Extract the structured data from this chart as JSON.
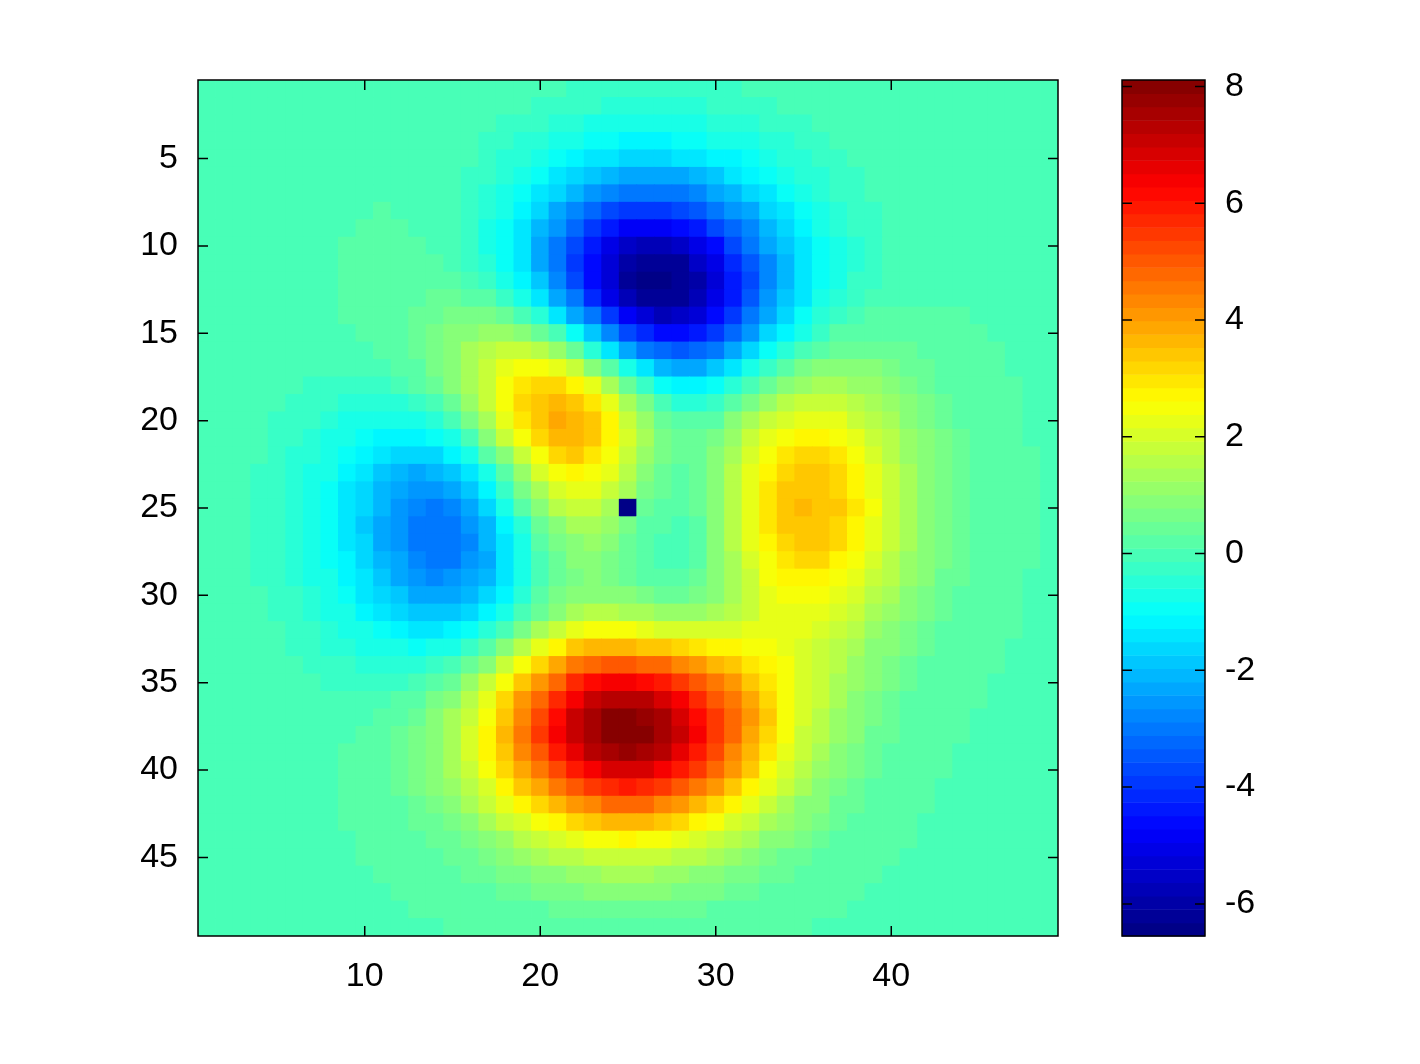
{
  "chart_data": {
    "type": "heatmap",
    "categories": [
      null,
      null,
      null,
      null,
      null,
      null,
      null,
      null,
      null,
      "10",
      null,
      null,
      null,
      null,
      null,
      null,
      null,
      null,
      null,
      "20",
      null,
      null,
      null,
      null,
      null,
      null,
      null,
      null,
      null,
      "30",
      null,
      null,
      null,
      null,
      null,
      null,
      null,
      null,
      null,
      "40",
      null,
      null,
      null,
      null,
      null,
      null,
      null,
      null,
      null
    ],
    "y_categories": [
      null,
      null,
      null,
      null,
      "5",
      null,
      null,
      null,
      null,
      "10",
      null,
      null,
      null,
      null,
      "15",
      null,
      null,
      null,
      null,
      "20",
      null,
      null,
      null,
      null,
      "25",
      null,
      null,
      null,
      null,
      "30",
      null,
      null,
      null,
      null,
      "35",
      null,
      null,
      null,
      null,
      "40",
      null,
      null,
      null,
      null,
      "45",
      null,
      null,
      null,
      null
    ],
    "clim": [
      -6.55,
      8.11
    ],
    "cticks": [
      -6,
      -4,
      -2,
      0,
      2,
      4,
      6,
      8
    ],
    "cells": [
      [
        0,
        0,
        0,
        0,
        0,
        0,
        0,
        0,
        0,
        0,
        0,
        0,
        0,
        0,
        0,
        0,
        0,
        0,
        -0.1,
        -0.1,
        -0.1,
        -0.2,
        -0.2,
        -0.2,
        -0.2,
        -0.3,
        -0.3,
        -0.2,
        -0.2,
        -0.2,
        -0.2,
        -0.1,
        -0.1,
        -0.1,
        -0.1,
        0,
        0,
        0,
        0,
        0,
        0,
        0,
        0,
        0,
        0,
        0,
        0,
        0,
        0
      ],
      [
        0,
        0,
        0,
        0,
        0,
        0,
        0,
        0,
        0,
        0,
        0,
        0,
        0,
        0,
        0,
        0,
        -0.1,
        -0.1,
        -0.1,
        -0.2,
        -0.2,
        -0.3,
        -0.3,
        -0.4,
        -0.4,
        -0.4,
        -0.4,
        -0.4,
        -0.4,
        -0.3,
        -0.3,
        -0.2,
        -0.2,
        -0.1,
        -0.1,
        -0.1,
        -0.1,
        0,
        0,
        0,
        0,
        0,
        0,
        0,
        0,
        0,
        0,
        0,
        0
      ],
      [
        0,
        0,
        0,
        0,
        0,
        0,
        0,
        0,
        0,
        0,
        0,
        0,
        0,
        0,
        0,
        -0.1,
        -0.1,
        -0.2,
        -0.2,
        -0.3,
        -0.4,
        -0.5,
        -0.6,
        -0.6,
        -0.7,
        -0.7,
        -0.7,
        -0.7,
        -0.6,
        -0.5,
        -0.5,
        -0.4,
        -0.3,
        -0.2,
        -0.2,
        -0.1,
        -0.1,
        -0.1,
        0,
        0,
        0,
        0,
        0,
        0,
        0,
        0,
        0,
        0,
        0
      ],
      [
        0,
        0,
        0,
        0,
        0,
        0,
        0,
        0,
        0,
        0,
        0,
        0,
        0,
        0,
        0,
        -0.1,
        -0.2,
        -0.2,
        -0.4,
        -0.5,
        -0.6,
        -0.8,
        -0.9,
        -1.0,
        -1.1,
        -1.1,
        -1.1,
        -1.0,
        -1.0,
        -0.8,
        -0.7,
        -0.6,
        -0.5,
        -0.4,
        -0.3,
        -0.2,
        -0.1,
        -0.1,
        -0.1,
        0,
        0,
        0,
        0,
        0,
        0,
        0,
        0,
        0,
        0
      ],
      [
        0,
        0,
        0,
        0,
        0,
        0,
        0,
        0,
        0,
        0,
        0,
        0,
        0,
        0,
        -0.1,
        -0.1,
        -0.2,
        -0.4,
        -0.5,
        -0.7,
        -0.9,
        -1.1,
        -1.3,
        -1.5,
        -1.6,
        -1.6,
        -1.6,
        -1.5,
        -1.4,
        -1.2,
        -1.1,
        -0.9,
        -0.7,
        -0.5,
        -0.4,
        -0.3,
        -0.2,
        -0.1,
        -0.1,
        0,
        0,
        0,
        0,
        0,
        0,
        0,
        0,
        0,
        0
      ],
      [
        0,
        0,
        0,
        0,
        0,
        0,
        0,
        0,
        0,
        0,
        0,
        0,
        0,
        0,
        -0.1,
        -0.2,
        -0.3,
        -0.5,
        -0.7,
        -1.0,
        -1.3,
        -1.6,
        -1.9,
        -2.1,
        -2.2,
        -2.3,
        -2.3,
        -2.2,
        -2.0,
        -1.8,
        -1.5,
        -1.2,
        -1.0,
        -0.7,
        -0.5,
        -0.4,
        -0.3,
        -0.2,
        -0.1,
        -0.1,
        0,
        0,
        0,
        0,
        0,
        0,
        0,
        0,
        0
      ],
      [
        0,
        0,
        0,
        0,
        0,
        0,
        0,
        0,
        0,
        0,
        0,
        0,
        0,
        0,
        -0.1,
        -0.3,
        -0.4,
        -0.7,
        -1.0,
        -1.4,
        -1.7,
        -2.1,
        -2.5,
        -2.8,
        -3.0,
        -3.1,
        -3.1,
        -3.0,
        -2.7,
        -2.4,
        -2.0,
        -1.7,
        -1.3,
        -1.0,
        -0.7,
        -0.5,
        -0.3,
        -0.2,
        -0.1,
        -0.1,
        0,
        0,
        0,
        0,
        0,
        0,
        0,
        0,
        0
      ],
      [
        0,
        0,
        0,
        0,
        0,
        0,
        0,
        0,
        0,
        0,
        0.1,
        0,
        0,
        0,
        -0.1,
        -0.3,
        -0.5,
        -0.8,
        -1.2,
        -1.7,
        -2.2,
        -2.7,
        -3.2,
        -3.6,
        -3.9,
        -4.0,
        -4.0,
        -3.8,
        -3.5,
        -3.1,
        -2.6,
        -2.2,
        -1.7,
        -1.3,
        -0.9,
        -0.7,
        -0.4,
        -0.3,
        -0.2,
        -0.1,
        -0.1,
        0,
        0,
        0,
        0,
        0,
        0,
        0,
        0
      ],
      [
        0,
        0,
        0,
        0,
        0,
        0,
        0,
        0,
        0,
        0.1,
        0.1,
        0.1,
        0,
        0,
        -0.1,
        -0.3,
        -0.6,
        -1.0,
        -1.4,
        -2.0,
        -2.6,
        -3.3,
        -3.9,
        -4.4,
        -4.8,
        -4.9,
        -4.9,
        -4.7,
        -4.3,
        -3.8,
        -3.3,
        -2.7,
        -2.1,
        -1.6,
        -1.1,
        -0.8,
        -0.5,
        -0.3,
        -0.2,
        -0.1,
        -0.1,
        0,
        0,
        0,
        0,
        0,
        0,
        0,
        0
      ],
      [
        0,
        0,
        0,
        0,
        0,
        0,
        0,
        0,
        0.1,
        0.1,
        0.1,
        0.1,
        0.1,
        0,
        -0.1,
        -0.3,
        -0.6,
        -1.0,
        -1.5,
        -2.2,
        -2.9,
        -3.7,
        -4.4,
        -5.0,
        -5.5,
        -5.7,
        -5.7,
        -5.5,
        -5.1,
        -4.5,
        -3.8,
        -3.1,
        -2.4,
        -1.8,
        -1.3,
        -0.9,
        -0.6,
        -0.4,
        -0.2,
        -0.1,
        -0.1,
        0,
        0,
        0,
        0,
        0,
        0,
        0,
        0
      ],
      [
        0,
        0,
        0,
        0,
        0,
        0,
        0,
        0,
        0.1,
        0.1,
        0.1,
        0.1,
        0.2,
        0.1,
        0,
        -0.2,
        -0.5,
        -0.9,
        -1.5,
        -2.2,
        -3.0,
        -3.9,
        -4.7,
        -5.4,
        -6.0,
        -6.3,
        -6.3,
        -6.1,
        -5.6,
        -5.0,
        -4.2,
        -3.5,
        -2.7,
        -2.0,
        -1.4,
        -1.0,
        -0.6,
        -0.4,
        -0.2,
        -0.1,
        0,
        0,
        0,
        0,
        0,
        0,
        0,
        0,
        0
      ],
      [
        0,
        0,
        0,
        0,
        0,
        0,
        0,
        0,
        0.1,
        0.1,
        0.2,
        0.2,
        0.2,
        0.2,
        0.2,
        0,
        -0.2,
        -0.6,
        -1.2,
        -1.9,
        -2.8,
        -3.7,
        -4.6,
        -5.4,
        -6.1,
        -6.4,
        -6.5,
        -6.3,
        -5.9,
        -5.2,
        -4.4,
        -3.6,
        -2.8,
        -2.0,
        -1.4,
        -0.9,
        -0.6,
        -0.3,
        -0.2,
        -0.1,
        0,
        0,
        0,
        0,
        0,
        0,
        0,
        0,
        0
      ],
      [
        0,
        0,
        0,
        0,
        0,
        0,
        0,
        0,
        0.1,
        0.1,
        0.2,
        0.3,
        0.3,
        0.4,
        0.4,
        0.3,
        0.2,
        -0.2,
        -0.7,
        -1.4,
        -2.2,
        -3.1,
        -4.1,
        -5.0,
        -5.7,
        -6.1,
        -6.3,
        -6.2,
        -5.8,
        -5.1,
        -4.3,
        -3.5,
        -2.6,
        -1.9,
        -1.3,
        -0.8,
        -0.4,
        -0.2,
        -0.1,
        0,
        0,
        0,
        0,
        0,
        0,
        0,
        0,
        0,
        0
      ],
      [
        0,
        0,
        0,
        0,
        0,
        0,
        0,
        0,
        0.1,
        0.1,
        0.2,
        0.3,
        0.4,
        0.5,
        0.6,
        0.7,
        0.6,
        0.4,
        0,
        -0.5,
        -1.3,
        -2.2,
        -3.1,
        -4.0,
        -4.8,
        -5.4,
        -5.7,
        -5.6,
        -5.2,
        -4.7,
        -3.9,
        -3.1,
        -2.3,
        -1.6,
        -1.0,
        -0.5,
        -0.2,
        0,
        0.1,
        0.1,
        0.1,
        0.1,
        0.1,
        0.1,
        0,
        0,
        0,
        0,
        0
      ],
      [
        0,
        0,
        0,
        0,
        0,
        0,
        0,
        0,
        0,
        0.1,
        0.2,
        0.3,
        0.4,
        0.6,
        0.8,
        1.0,
        1.1,
        1.1,
        0.9,
        0.5,
        -0.1,
        -0.9,
        -1.8,
        -2.8,
        -3.6,
        -4.2,
        -4.6,
        -4.7,
        -4.4,
        -3.9,
        -3.2,
        -2.5,
        -1.7,
        -1.1,
        -0.6,
        -0.2,
        0.1,
        0.2,
        0.3,
        0.3,
        0.2,
        0.2,
        0.1,
        0.1,
        0.1,
        0,
        0,
        0,
        0
      ],
      [
        0,
        0,
        0,
        0,
        0,
        0,
        0,
        0,
        0,
        0,
        0.1,
        0.2,
        0.4,
        0.7,
        1.0,
        1.3,
        1.6,
        1.7,
        1.7,
        1.5,
        1.1,
        0.4,
        -0.4,
        -1.3,
        -2.2,
        -2.9,
        -3.3,
        -3.5,
        -3.3,
        -2.9,
        -2.4,
        -1.7,
        -1.0,
        -0.5,
        0,
        0.3,
        0.5,
        0.5,
        0.5,
        0.4,
        0.4,
        0.3,
        0.2,
        0.1,
        0.1,
        0.1,
        0,
        0,
        0
      ],
      [
        0,
        0,
        0,
        0,
        0,
        -0.1,
        -0.1,
        -0.1,
        -0.1,
        -0.1,
        0,
        0.1,
        0.3,
        0.6,
        1.0,
        1.4,
        1.9,
        2.2,
        2.5,
        2.5,
        2.2,
        1.7,
        1.0,
        0.1,
        -0.7,
        -1.5,
        -2.0,
        -2.3,
        -2.2,
        -1.9,
        -1.4,
        -0.8,
        -0.3,
        0.2,
        0.6,
        0.8,
        0.9,
        0.9,
        0.8,
        0.6,
        0.5,
        0.4,
        0.3,
        0.2,
        0.1,
        0.1,
        0,
        0,
        0
      ],
      [
        0,
        0,
        0,
        -0.1,
        -0.1,
        -0.1,
        -0.2,
        -0.2,
        -0.3,
        -0.3,
        -0.2,
        -0.1,
        0.1,
        0.4,
        0.8,
        1.4,
        1.9,
        2.5,
        2.9,
        3.2,
        3.1,
        2.8,
        2.2,
        1.4,
        0.5,
        -0.3,
        -0.9,
        -1.2,
        -1.2,
        -1.0,
        -0.5,
        0,
        0.5,
        0.9,
        1.2,
        1.3,
        1.3,
        1.2,
        1.1,
        0.9,
        0.7,
        0.5,
        0.3,
        0.2,
        0.1,
        0.1,
        0.1,
        0,
        0
      ],
      [
        0,
        0,
        0,
        -0.1,
        -0.1,
        -0.2,
        -0.3,
        -0.3,
        -0.4,
        -0.5,
        -0.5,
        -0.5,
        -0.3,
        0,
        0.5,
        1.1,
        1.8,
        2.5,
        3.1,
        3.5,
        3.6,
        3.4,
        2.9,
        2.2,
        1.4,
        0.6,
        0,
        -0.4,
        -0.4,
        -0.2,
        0.2,
        0.7,
        1.2,
        1.6,
        1.8,
        1.9,
        1.8,
        1.6,
        1.3,
        1.1,
        0.8,
        0.6,
        0.4,
        0.3,
        0.2,
        0.1,
        0.1,
        0,
        0
      ],
      [
        0,
        0,
        -0.1,
        -0.1,
        -0.2,
        -0.2,
        -0.3,
        -0.5,
        -0.6,
        -0.7,
        -0.8,
        -0.8,
        -0.7,
        -0.5,
        0,
        0.6,
        1.4,
        2.2,
        2.9,
        3.5,
        3.8,
        3.7,
        3.3,
        2.7,
        1.9,
        1.1,
        0.5,
        0.2,
        0.1,
        0.3,
        0.8,
        1.3,
        1.7,
        2.1,
        2.3,
        2.3,
        2.2,
        1.9,
        1.6,
        1.3,
        1.0,
        0.7,
        0.5,
        0.3,
        0.2,
        0.1,
        0.1,
        0,
        0
      ],
      [
        0,
        0,
        -0.1,
        -0.1,
        -0.2,
        -0.3,
        -0.4,
        -0.6,
        -0.8,
        -1.0,
        -1.2,
        -1.2,
        -1.2,
        -1.0,
        -0.6,
        0,
        0.8,
        1.7,
        2.5,
        3.2,
        3.6,
        3.6,
        3.3,
        2.7,
        2.0,
        1.3,
        0.7,
        0.4,
        0.4,
        0.7,
        1.1,
        1.7,
        2.2,
        2.6,
        2.8,
        2.7,
        2.6,
        2.3,
        1.9,
        1.5,
        1.1,
        0.8,
        0.6,
        0.4,
        0.2,
        0.1,
        0.1,
        0,
        0
      ],
      [
        0,
        -0.1,
        -0.1,
        -0.1,
        -0.2,
        -0.4,
        -0.5,
        -0.7,
        -1.0,
        -1.2,
        -1.5,
        -1.7,
        -1.7,
        -1.6,
        -1.2,
        -0.7,
        0.1,
        1.0,
        1.9,
        2.6,
        3.1,
        3.3,
        3.0,
        2.5,
        1.9,
        1.2,
        0.7,
        0.4,
        0.5,
        0.8,
        1.4,
        2.0,
        2.5,
        2.9,
        3.1,
        3.1,
        2.9,
        2.5,
        2.1,
        1.6,
        1.2,
        0.9,
        0.6,
        0.4,
        0.3,
        0.2,
        0.1,
        0.1,
        0
      ],
      [
        0,
        -0.1,
        -0.1,
        -0.2,
        -0.3,
        -0.4,
        -0.6,
        -0.8,
        -1.1,
        -1.5,
        -1.8,
        -2.0,
        -2.2,
        -2.1,
        -1.8,
        -1.3,
        -0.6,
        0.3,
        1.2,
        2.0,
        2.6,
        2.8,
        2.6,
        2.2,
        1.6,
        1.0,
        0.5,
        0.3,
        0.5,
        0.9,
        1.5,
        2.2,
        2.8,
        3.2,
        3.4,
        3.3,
        3.1,
        2.7,
        2.2,
        1.8,
        1.3,
        1.0,
        0.7,
        0.4,
        0.3,
        0.2,
        0.1,
        0.1,
        0
      ],
      [
        0,
        -0.1,
        -0.1,
        -0.2,
        -0.3,
        -0.4,
        -0.7,
        -0.9,
        -1.3,
        -1.6,
        -2.0,
        -2.3,
        -2.5,
        -2.6,
        -2.3,
        -1.9,
        -1.2,
        -0.3,
        0.6,
        1.4,
        2.0,
        2.3,
        2.2,
        1.8,
        1.3,
        0.7,
        0.4,
        0.2,
        0.4,
        0.9,
        1.6,
        2.3,
        2.9,
        3.3,
        3.5,
        3.5,
        3.2,
        2.8,
        2.3,
        1.8,
        1.4,
        1.0,
        0.7,
        0.5,
        0.3,
        0.2,
        0.1,
        0.1,
        0
      ],
      [
        0,
        -0.1,
        -0.1,
        -0.2,
        -0.3,
        -0.5,
        -0.7,
        -1.0,
        -1.3,
        -1.7,
        -2.1,
        -2.5,
        -2.8,
        -2.9,
        -2.7,
        -2.3,
        -1.7,
        -0.8,
        0.1,
        0.9,
        1.5,
        1.8,
        1.8,
        1.4,
        -6.5,
        0.5,
        0.2,
        0.1,
        0.4,
        0.9,
        1.6,
        2.3,
        2.9,
        3.4,
        3.6,
        3.5,
        3.3,
        2.9,
        2.4,
        1.9,
        1.4,
        1.0,
        0.7,
        0.5,
        0.3,
        0.2,
        0.1,
        0.1,
        0
      ],
      [
        0,
        -0.1,
        -0.1,
        -0.2,
        -0.3,
        -0.5,
        -0.7,
        -1.0,
        -1.4,
        -1.8,
        -2.2,
        -2.6,
        -2.9,
        -3.0,
        -2.9,
        -2.6,
        -2.0,
        -1.2,
        -0.4,
        0.4,
        1.0,
        1.4,
        1.4,
        1.1,
        0.7,
        0.3,
        0.1,
        0,
        0.3,
        0.9,
        1.5,
        2.3,
        2.9,
        3.3,
        3.5,
        3.5,
        3.2,
        2.8,
        2.3,
        1.8,
        1.4,
        1.0,
        0.7,
        0.5,
        0.3,
        0.2,
        0.1,
        0.1,
        0
      ],
      [
        0,
        -0.1,
        -0.1,
        -0.2,
        -0.3,
        -0.5,
        -0.7,
        -1.0,
        -1.3,
        -1.7,
        -2.2,
        -2.6,
        -2.9,
        -3.0,
        -3.0,
        -2.7,
        -2.1,
        -1.4,
        -0.6,
        0.1,
        0.7,
        1.0,
        1.1,
        0.9,
        0.5,
        0.2,
        0,
        0,
        0.3,
        0.8,
        1.5,
        2.2,
        2.8,
        3.2,
        3.4,
        3.3,
        3.1,
        2.7,
        2.2,
        1.7,
        1.3,
        0.9,
        0.7,
        0.4,
        0.3,
        0.2,
        0.1,
        0.1,
        0
      ],
      [
        0,
        -0.1,
        -0.1,
        -0.2,
        -0.3,
        -0.4,
        -0.6,
        -0.9,
        -1.2,
        -1.6,
        -2.0,
        -2.4,
        -2.7,
        -2.9,
        -2.9,
        -2.6,
        -2.2,
        -1.5,
        -0.8,
        -0.1,
        0.4,
        0.8,
        0.8,
        0.7,
        0.4,
        0.1,
        0,
        0,
        0.3,
        0.8,
        1.4,
        2.0,
        2.6,
        3.0,
        3.1,
        3.1,
        2.8,
        2.5,
        2.1,
        1.6,
        1.2,
        0.9,
        0.6,
        0.4,
        0.3,
        0.2,
        0.1,
        0.1,
        0
      ],
      [
        0,
        -0.1,
        -0.1,
        -0.2,
        -0.2,
        -0.4,
        -0.6,
        -0.8,
        -1.1,
        -1.5,
        -1.9,
        -2.2,
        -2.5,
        -2.7,
        -2.6,
        -2.4,
        -2.0,
        -1.4,
        -0.8,
        -0.1,
        0.4,
        0.7,
        0.8,
        0.7,
        0.5,
        0.2,
        0.1,
        0.1,
        0.4,
        0.8,
        1.3,
        1.9,
        2.4,
        2.7,
        2.8,
        2.8,
        2.6,
        2.2,
        1.8,
        1.5,
        1.1,
        0.8,
        0.5,
        0.4,
        0.2,
        0.1,
        0.1,
        0,
        0
      ],
      [
        0,
        0,
        -0.1,
        -0.1,
        -0.2,
        -0.3,
        -0.5,
        -0.7,
        -1.0,
        -1.3,
        -1.6,
        -1.9,
        -2.2,
        -2.3,
        -2.3,
        -2.1,
        -1.7,
        -1.1,
        -0.5,
        0.1,
        0.6,
        0.9,
        1.0,
        1.0,
        0.8,
        0.6,
        0.5,
        0.5,
        0.7,
        1.0,
        1.4,
        1.9,
        2.2,
        2.5,
        2.6,
        2.5,
        2.3,
        2.0,
        1.6,
        1.3,
        1.0,
        0.7,
        0.5,
        0.3,
        0.2,
        0.1,
        0.1,
        0,
        0
      ],
      [
        0,
        0,
        -0.1,
        -0.1,
        -0.2,
        -0.3,
        -0.4,
        -0.6,
        -0.8,
        -1.1,
        -1.3,
        -1.6,
        -1.8,
        -1.8,
        -1.8,
        -1.6,
        -1.2,
        -0.6,
        0,
        0.5,
        1.0,
        1.4,
        1.6,
        1.5,
        1.4,
        1.3,
        1.1,
        1.1,
        1.2,
        1.4,
        1.6,
        1.9,
        2.2,
        2.3,
        2.3,
        2.2,
        2.0,
        1.7,
        1.4,
        1.1,
        0.8,
        0.6,
        0.4,
        0.3,
        0.2,
        0.1,
        0.1,
        0,
        0
      ],
      [
        0,
        0,
        -0.1,
        -0.1,
        -0.1,
        -0.2,
        -0.3,
        -0.5,
        -0.6,
        -0.8,
        -1.0,
        -1.2,
        -1.3,
        -1.3,
        -1.2,
        -0.9,
        -0.5,
        0,
        0.7,
        1.3,
        1.8,
        2.2,
        2.4,
        2.5,
        2.4,
        2.3,
        2.1,
        2.0,
        2.0,
        2.0,
        2.1,
        2.2,
        2.2,
        2.2,
        2.2,
        2.0,
        1.8,
        1.5,
        1.2,
        0.9,
        0.7,
        0.5,
        0.3,
        0.2,
        0.1,
        0.1,
        0.1,
        0,
        0
      ],
      [
        0,
        0,
        0,
        -0.1,
        -0.1,
        -0.2,
        -0.3,
        -0.4,
        -0.5,
        -0.6,
        -0.7,
        -0.8,
        -0.9,
        -0.8,
        -0.6,
        -0.3,
        0.2,
        0.8,
        1.5,
        2.2,
        2.8,
        3.3,
        3.6,
        3.7,
        3.7,
        3.5,
        3.3,
        3.1,
        2.9,
        2.8,
        2.7,
        2.6,
        2.4,
        2.3,
        2.1,
        1.8,
        1.6,
        1.3,
        1.0,
        0.8,
        0.6,
        0.4,
        0.3,
        0.2,
        0.1,
        0.1,
        0,
        0,
        0
      ],
      [
        0,
        0,
        0,
        -0.1,
        -0.1,
        -0.1,
        -0.2,
        -0.3,
        -0.3,
        -0.4,
        -0.5,
        -0.5,
        -0.4,
        -0.3,
        0,
        0.4,
        1.0,
        1.7,
        2.4,
        3.2,
        3.9,
        4.5,
        4.9,
        5.1,
        5.1,
        4.9,
        4.7,
        4.4,
        4.0,
        3.7,
        3.3,
        3.0,
        2.7,
        2.4,
        2.1,
        1.8,
        1.5,
        1.2,
        0.9,
        0.7,
        0.5,
        0.3,
        0.2,
        0.1,
        0.1,
        0.1,
        0,
        0,
        0
      ],
      [
        0,
        0,
        0,
        0,
        -0.1,
        -0.1,
        -0.1,
        -0.2,
        -0.2,
        -0.2,
        -0.2,
        -0.2,
        0,
        0.2,
        0.5,
        1.1,
        1.7,
        2.5,
        3.3,
        4.1,
        4.9,
        5.6,
        6.1,
        6.3,
        6.4,
        6.2,
        5.9,
        5.5,
        5.0,
        4.5,
        4.0,
        3.5,
        3.0,
        2.5,
        2.1,
        1.7,
        1.4,
        1.1,
        0.8,
        0.6,
        0.4,
        0.3,
        0.2,
        0.1,
        0.1,
        0,
        0,
        0,
        0
      ],
      [
        0,
        0,
        0,
        0,
        0,
        0,
        -0.1,
        -0.1,
        -0.1,
        -0.1,
        0,
        0.1,
        0.3,
        0.6,
        1.0,
        1.5,
        2.3,
        3.1,
        4.0,
        4.9,
        5.7,
        6.5,
        7.0,
        7.3,
        7.4,
        7.3,
        6.9,
        6.4,
        5.8,
        5.1,
        4.5,
        3.8,
        3.2,
        2.6,
        2.1,
        1.7,
        1.3,
        1.0,
        0.7,
        0.5,
        0.3,
        0.2,
        0.2,
        0.1,
        0.1,
        0,
        0,
        0,
        0
      ],
      [
        0,
        0,
        0,
        0,
        0,
        0,
        0,
        0,
        0,
        0,
        0.1,
        0.3,
        0.5,
        0.8,
        1.3,
        1.9,
        2.6,
        3.5,
        4.4,
        5.3,
        6.2,
        7.0,
        7.5,
        7.9,
        8.0,
        7.8,
        7.5,
        6.9,
        6.2,
        5.5,
        4.7,
        4.0,
        3.3,
        2.6,
        2.1,
        1.6,
        1.2,
        0.9,
        0.6,
        0.4,
        0.3,
        0.2,
        0.1,
        0.1,
        0,
        0,
        0,
        0,
        0
      ],
      [
        0,
        0,
        0,
        0,
        0,
        0,
        0,
        0,
        0,
        0.1,
        0.2,
        0.4,
        0.6,
        0.9,
        1.4,
        2.0,
        2.7,
        3.6,
        4.5,
        5.4,
        6.3,
        7.0,
        7.6,
        8.0,
        8.1,
        7.9,
        7.6,
        7.0,
        6.3,
        5.5,
        4.7,
        3.9,
        3.2,
        2.5,
        1.9,
        1.5,
        1.1,
        0.8,
        0.5,
        0.4,
        0.2,
        0.2,
        0.1,
        0.1,
        0,
        0,
        0,
        0,
        0
      ],
      [
        0,
        0,
        0,
        0,
        0,
        0,
        0,
        0,
        0.1,
        0.1,
        0.2,
        0.4,
        0.6,
        1.0,
        1.4,
        2.0,
        2.7,
        3.4,
        4.3,
        5.1,
        6.0,
        6.7,
        7.2,
        7.6,
        7.7,
        7.5,
        7.2,
        6.7,
        6.0,
        5.2,
        4.4,
        3.7,
        3.0,
        2.3,
        1.8,
        1.3,
        1.0,
        0.7,
        0.5,
        0.3,
        0.2,
        0.1,
        0.1,
        0,
        0,
        0,
        0,
        0,
        0
      ],
      [
        0,
        0,
        0,
        0,
        0,
        0,
        0,
        0,
        0.1,
        0.1,
        0.2,
        0.4,
        0.6,
        0.9,
        1.3,
        1.8,
        2.4,
        3.1,
        3.9,
        4.6,
        5.3,
        6.0,
        6.5,
        6.8,
        6.9,
        6.8,
        6.5,
        6.0,
        5.4,
        4.7,
        4.0,
        3.3,
        2.6,
        2.0,
        1.5,
        1.1,
        0.8,
        0.6,
        0.4,
        0.3,
        0.2,
        0.1,
        0.1,
        0,
        0,
        0,
        0,
        0,
        0
      ],
      [
        0,
        0,
        0,
        0,
        0,
        0,
        0,
        0,
        0.1,
        0.1,
        0.2,
        0.4,
        0.6,
        0.8,
        1.2,
        1.6,
        2.1,
        2.7,
        3.3,
        3.9,
        4.6,
        5.1,
        5.5,
        5.8,
        5.9,
        5.8,
        5.5,
        5.1,
        4.6,
        4.0,
        3.4,
        2.8,
        2.2,
        1.7,
        1.3,
        0.9,
        0.7,
        0.5,
        0.3,
        0.2,
        0.1,
        0.1,
        0,
        0,
        0,
        0,
        0,
        0,
        0
      ],
      [
        0,
        0,
        0,
        0,
        0,
        0,
        0,
        0,
        0.1,
        0.1,
        0.2,
        0.3,
        0.5,
        0.7,
        0.9,
        1.3,
        1.7,
        2.2,
        2.7,
        3.2,
        3.7,
        4.1,
        4.4,
        4.7,
        4.7,
        4.7,
        4.4,
        4.1,
        3.7,
        3.2,
        2.7,
        2.2,
        1.8,
        1.4,
        1.0,
        0.8,
        0.5,
        0.4,
        0.2,
        0.2,
        0.1,
        0.1,
        0,
        0,
        0,
        0,
        0,
        0,
        0
      ],
      [
        0,
        0,
        0,
        0,
        0,
        0,
        0,
        0,
        0.1,
        0.1,
        0.2,
        0.2,
        0.4,
        0.5,
        0.7,
        1.0,
        1.3,
        1.7,
        2.1,
        2.5,
        2.8,
        3.2,
        3.4,
        3.6,
        3.6,
        3.6,
        3.4,
        3.2,
        2.8,
        2.5,
        2.1,
        1.7,
        1.4,
        1.1,
        0.8,
        0.6,
        0.4,
        0.3,
        0.2,
        0.1,
        0.1,
        0,
        0,
        0,
        0,
        0,
        0,
        0,
        0
      ],
      [
        0,
        0,
        0,
        0,
        0,
        0,
        0,
        0,
        0,
        0.1,
        0.1,
        0.2,
        0.3,
        0.4,
        0.5,
        0.7,
        1.0,
        1.2,
        1.5,
        1.8,
        2.1,
        2.3,
        2.5,
        2.6,
        2.7,
        2.6,
        2.5,
        2.3,
        2.1,
        1.8,
        1.5,
        1.3,
        1.0,
        0.8,
        0.6,
        0.4,
        0.3,
        0.2,
        0.1,
        0.1,
        0.1,
        0,
        0,
        0,
        0,
        0,
        0,
        0,
        0
      ],
      [
        0,
        0,
        0,
        0,
        0,
        0,
        0,
        0,
        0,
        0.1,
        0.1,
        0.1,
        0.2,
        0.3,
        0.4,
        0.5,
        0.7,
        0.9,
        1.1,
        1.3,
        1.5,
        1.6,
        1.8,
        1.9,
        1.9,
        1.9,
        1.8,
        1.6,
        1.5,
        1.3,
        1.1,
        0.9,
        0.7,
        0.5,
        0.4,
        0.3,
        0.2,
        0.1,
        0.1,
        0.1,
        0,
        0,
        0,
        0,
        0,
        0,
        0,
        0,
        0
      ],
      [
        0,
        0,
        0,
        0,
        0,
        0,
        0,
        0,
        0,
        0,
        0.1,
        0.1,
        0.1,
        0.2,
        0.3,
        0.4,
        0.5,
        0.6,
        0.7,
        0.9,
        1.0,
        1.1,
        1.2,
        1.3,
        1.3,
        1.3,
        1.2,
        1.1,
        1.0,
        0.9,
        0.7,
        0.6,
        0.5,
        0.4,
        0.3,
        0.2,
        0.1,
        0.1,
        0.1,
        0,
        0,
        0,
        0,
        0,
        0,
        0,
        0,
        0,
        0
      ],
      [
        0,
        0,
        0,
        0,
        0,
        0,
        0,
        0,
        0,
        0,
        0,
        0.1,
        0.1,
        0.1,
        0.2,
        0.2,
        0.3,
        0.4,
        0.5,
        0.6,
        0.6,
        0.7,
        0.8,
        0.8,
        0.8,
        0.8,
        0.8,
        0.7,
        0.6,
        0.6,
        0.5,
        0.4,
        0.3,
        0.2,
        0.2,
        0.1,
        0.1,
        0.1,
        0,
        0,
        0,
        0,
        0,
        0,
        0,
        0,
        0,
        0,
        0
      ],
      [
        0,
        0,
        0,
        0,
        0,
        0,
        0,
        0,
        0,
        0,
        0,
        0,
        0.1,
        0.1,
        0.1,
        0.1,
        0.2,
        0.2,
        0.3,
        0.3,
        0.4,
        0.4,
        0.5,
        0.5,
        0.5,
        0.5,
        0.5,
        0.4,
        0.4,
        0.3,
        0.3,
        0.2,
        0.2,
        0.1,
        0.1,
        0.1,
        0.1,
        0,
        0,
        0,
        0,
        0,
        0,
        0,
        0,
        0,
        0,
        0,
        0
      ],
      [
        0,
        0,
        0,
        0,
        0,
        0,
        0,
        0,
        0,
        0,
        0,
        0,
        0,
        0,
        0.1,
        0.1,
        0.1,
        0.1,
        0.2,
        0.2,
        0.2,
        0.3,
        0.3,
        0.3,
        0.3,
        0.3,
        0.3,
        0.3,
        0.2,
        0.2,
        0.2,
        0.1,
        0.1,
        0.1,
        0.1,
        0,
        0,
        0,
        0,
        0,
        0,
        0,
        0,
        0,
        0,
        0,
        0,
        0,
        0
      ]
    ]
  }
}
